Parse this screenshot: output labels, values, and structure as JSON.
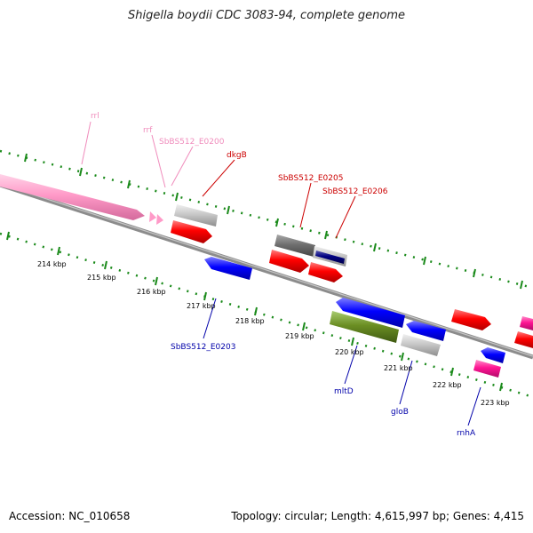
{
  "title": "Shigella boydii CDC 3083-94, complete genome",
  "footer": {
    "accession": "Accession: NC_010658",
    "summary": "Topology: circular; Length: 4,615,997 bp; Genes: 4,415"
  },
  "colors": {
    "rrna": "#ff9ac8",
    "label_rrna": "#f08cbc",
    "red": "#ff0000",
    "label_red": "#cc0000",
    "blue": "#0000ff",
    "label_blue": "#0000aa",
    "gray": "#c8c8c8",
    "darkgray": "#707070",
    "navy": "#000080",
    "olive": "#6b8e23",
    "magenta": "#ff1493",
    "backbone": "#8c8c8c",
    "ticks": "#1a8a1a"
  },
  "kbp_labels": [
    "214 kbp",
    "215 kbp",
    "216 kbp",
    "217 kbp",
    "218 kbp",
    "219 kbp",
    "220 kbp",
    "221 kbp",
    "222 kbp",
    "223 kbp"
  ],
  "gene_labels": {
    "rrl": "rrl",
    "rrf": "rrf",
    "e0200": "SbBS512_E0200",
    "dkgB": "dkgB",
    "e0205": "SbBS512_E0205",
    "e0206": "SbBS512_E0206",
    "e0203": "SbBS512_E0203",
    "mltD": "mltD",
    "gloB": "gloB",
    "rnhA": "rnhA"
  }
}
